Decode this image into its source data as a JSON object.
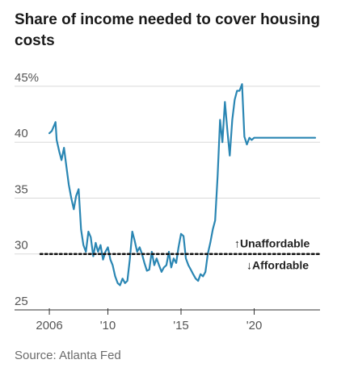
{
  "header": {
    "title": "Share of income needed to cover housing costs"
  },
  "footer": {
    "source": "Source: Atlanta Fed"
  },
  "chart_data": {
    "type": "line",
    "title": "Share of income needed to cover housing costs",
    "xlabel": "",
    "ylabel": "",
    "ylim": [
      25,
      45.5
    ],
    "xlim": [
      2005.5,
      2024.5
    ],
    "y_ticks": [
      {
        "value": 45,
        "label": "45%"
      },
      {
        "value": 40,
        "label": "40"
      },
      {
        "value": 35,
        "label": "35"
      },
      {
        "value": 30,
        "label": "30"
      },
      {
        "value": 25,
        "label": "25"
      }
    ],
    "x_ticks": [
      {
        "value": 2006,
        "label": "2006"
      },
      {
        "value": 2010,
        "label": "'10"
      },
      {
        "value": 2015,
        "label": "'15"
      },
      {
        "value": 2020,
        "label": "'20"
      }
    ],
    "gridlines": true,
    "series": [
      {
        "color": "#2a86b3",
        "x": [
          2006.0,
          2006.17,
          2006.42,
          2006.5,
          2006.67,
          2006.83,
          2007.0,
          2007.17,
          2007.33,
          2007.5,
          2007.67,
          2007.83,
          2008.0,
          2008.17,
          2008.33,
          2008.5,
          2008.67,
          2008.83,
          2009.0,
          2009.17,
          2009.33,
          2009.5,
          2009.67,
          2009.83,
          2010.0,
          2010.17,
          2010.33,
          2010.5,
          2010.67,
          2010.83,
          2011.0,
          2011.17,
          2011.33,
          2011.5,
          2011.67,
          2011.83,
          2012.0,
          2012.17,
          2012.33,
          2012.5,
          2012.67,
          2012.83,
          2013.0,
          2013.17,
          2013.33,
          2013.5,
          2013.67,
          2013.83,
          2014.0,
          2014.17,
          2014.33,
          2014.5,
          2014.67,
          2014.83,
          2015.0,
          2015.17,
          2015.33,
          2015.5,
          2015.67,
          2015.83,
          2016.0,
          2016.17,
          2016.33,
          2016.5,
          2016.67,
          2016.83,
          2017.0,
          2017.17,
          2017.33,
          2017.5,
          2017.67,
          2017.83,
          2018.0,
          2018.17,
          2018.33,
          2018.5,
          2018.67,
          2018.83,
          2019.0,
          2019.17,
          2019.33,
          2019.5,
          2019.67,
          2019.83,
          2020.0,
          2020.17,
          2020.33,
          2020.5,
          2020.67,
          2020.83,
          2021.0,
          2021.17,
          2021.33,
          2021.5,
          2021.67,
          2021.83,
          2022.0,
          2022.17,
          2022.33,
          2022.5,
          2022.67,
          2022.83,
          2023.0,
          2023.17,
          2023.33,
          2023.5,
          2023.67,
          2023.83,
          2024.0,
          2024.17
        ],
        "values": [
          40.8,
          41.0,
          41.8,
          40.2,
          39.2,
          38.4,
          39.5,
          37.8,
          36.2,
          35.0,
          34.0,
          35.2,
          35.8,
          32.2,
          30.8,
          30.2,
          32.0,
          31.5,
          29.8,
          31.0,
          30.2,
          30.8,
          29.5,
          30.2,
          30.6,
          29.5,
          29.0,
          28.0,
          27.4,
          27.2,
          27.8,
          27.4,
          27.6,
          29.5,
          32.0,
          31.2,
          30.2,
          30.6,
          30.0,
          29.2,
          28.5,
          28.6,
          30.2,
          29.0,
          29.6,
          29.0,
          28.4,
          28.8,
          29.0,
          30.2,
          28.8,
          29.6,
          29.2,
          30.6,
          31.8,
          31.6,
          29.6,
          29.0,
          28.6,
          28.2,
          27.8,
          27.6,
          28.2,
          28.0,
          28.4,
          30.0,
          31.0,
          32.2,
          33.0,
          37.0,
          42.0,
          40.0,
          43.6,
          41.0,
          38.8,
          42.0,
          43.8,
          44.6,
          44.6,
          45.2,
          40.5,
          39.8,
          40.4,
          40.2,
          40.4,
          40.4,
          40.4,
          40.4,
          40.4,
          40.4,
          40.4,
          40.4,
          40.4,
          40.4,
          40.4,
          40.4,
          40.4,
          40.4,
          40.4,
          40.4,
          40.4,
          40.4,
          40.4,
          40.4,
          40.4,
          40.4,
          40.4,
          40.4,
          40.4,
          40.4
        ]
      }
    ],
    "reference_line": {
      "value": 30,
      "above_label": "↑Unaffordable",
      "below_label": "↓Affordable"
    }
  }
}
